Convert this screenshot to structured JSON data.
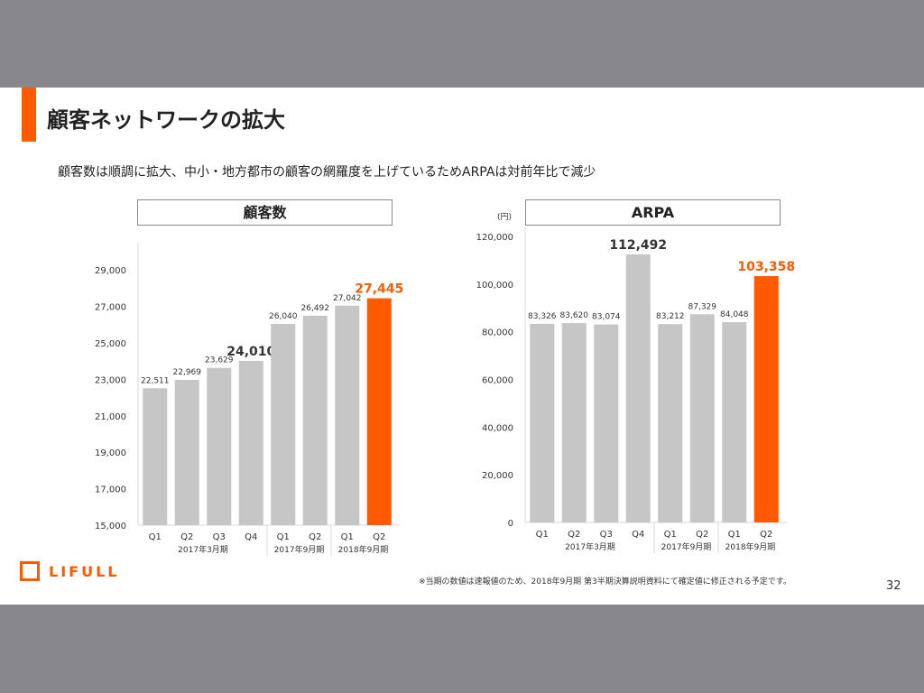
{
  "slide": {
    "title": "顧客ネットワークの拡大",
    "subtitle": "顧客数は順調に拡大、中小・地方都市の顧客の網羅度を上げているためARPAは対前年比で減少",
    "footnote": "※当期の数値は速報値のため、2018年9月期 第3半期決算説明資料にて確定値に修正される予定です。",
    "page_number": "32",
    "logo_text": "LIFULL"
  },
  "colors": {
    "accent": "#ff5a00",
    "bar_gray": "#c6c6c6",
    "highlight": "#ff5a00"
  },
  "chart_data": [
    {
      "type": "bar",
      "title": "顧客数",
      "unit_label": "",
      "categories": [
        "Q1",
        "Q2",
        "Q3",
        "Q4",
        "Q1",
        "Q2",
        "Q1",
        "Q2"
      ],
      "values": [
        22511,
        22969,
        23629,
        24010,
        26040,
        26492,
        27042,
        27445
      ],
      "value_labels": [
        "22,511",
        "22,969",
        "23,629",
        "24,010",
        "26,040",
        "26,492",
        "27,042",
        "27,445"
      ],
      "emphasized": [
        false,
        false,
        false,
        true,
        false,
        false,
        false,
        true
      ],
      "highlighted_index": 7,
      "period_groups": [
        {
          "label": "2017年3月期",
          "start": 0,
          "end": 3
        },
        {
          "label": "2017年9月期",
          "start": 4,
          "end": 5
        },
        {
          "label": "2018年9月期",
          "start": 6,
          "end": 7
        }
      ],
      "ylim": [
        15000,
        30000
      ],
      "yticks": [
        15000,
        17000,
        19000,
        21000,
        23000,
        25000,
        27000,
        29000
      ],
      "ytick_labels": [
        "15,000",
        "17,000",
        "19,000",
        "21,000",
        "23,000",
        "25,000",
        "27,000",
        "29,000"
      ],
      "grid": false,
      "legend": "none"
    },
    {
      "type": "bar",
      "title": "ARPA",
      "unit_label": "(円)",
      "categories": [
        "Q1",
        "Q2",
        "Q3",
        "Q4",
        "Q1",
        "Q2",
        "Q1",
        "Q2"
      ],
      "values": [
        83326,
        83620,
        83074,
        112492,
        83212,
        87329,
        84048,
        103358
      ],
      "value_labels": [
        "83,326",
        "83,620",
        "83,074",
        "112,492",
        "83,212",
        "87,329",
        "84,048",
        "103,358"
      ],
      "emphasized": [
        false,
        false,
        false,
        true,
        false,
        false,
        false,
        true
      ],
      "highlighted_index": 7,
      "period_groups": [
        {
          "label": "2017年3月期",
          "start": 0,
          "end": 3
        },
        {
          "label": "2017年9月期",
          "start": 4,
          "end": 5
        },
        {
          "label": "2018年9月期",
          "start": 6,
          "end": 7
        }
      ],
      "ylim": [
        0,
        120000
      ],
      "yticks": [
        0,
        20000,
        40000,
        60000,
        80000,
        100000,
        120000
      ],
      "ytick_labels": [
        "0",
        "20,000",
        "40,000",
        "60,000",
        "80,000",
        "100,000",
        "120,000"
      ],
      "grid": false,
      "legend": "none"
    }
  ]
}
